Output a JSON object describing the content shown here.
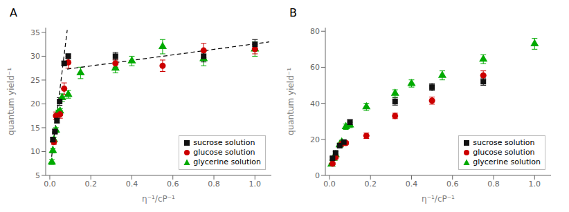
{
  "chart_data": [
    {
      "type": "scatter",
      "title": "A",
      "xlabel": "η⁻¹/cP⁻¹",
      "ylabel": "quantum yield⁻¹",
      "xlim": [
        -0.02,
        1.08
      ],
      "ylim": [
        5,
        36
      ],
      "xticks": [
        {
          "value": 0,
          "label": "0.0"
        },
        0.2,
        0.4,
        0.6,
        0.8,
        {
          "value": 1,
          "label": "1.0"
        }
      ],
      "yticks": [
        5,
        10,
        15,
        20,
        25,
        30,
        35
      ],
      "grid": false,
      "legend": "lower right",
      "series": [
        {
          "name": "sucrose solution",
          "color": "#111111",
          "marker": "square",
          "x": [
            0.015,
            0.025,
            0.035,
            0.048,
            0.07,
            0.09,
            0.32,
            0.75,
            1.0
          ],
          "y": [
            12.5,
            14.2,
            16.5,
            20.5,
            28.5,
            30.0,
            30.0,
            30.0,
            32.5
          ],
          "yerr": [
            0.5,
            0.5,
            0.5,
            0.8,
            0.5,
            0.5,
            0.8,
            1.2,
            1.0
          ]
        },
        {
          "name": "glucose solution",
          "color": "#cc0000",
          "marker": "circle",
          "x": [
            0.02,
            0.03,
            0.05,
            0.07,
            0.09,
            0.32,
            0.55,
            0.75,
            1.0
          ],
          "y": [
            12.0,
            17.5,
            17.8,
            23.2,
            28.7,
            28.5,
            28.0,
            31.2,
            31.5
          ],
          "yerr": [
            0.5,
            0.8,
            0.8,
            1.2,
            1.2,
            0.8,
            1.2,
            1.5,
            1.0
          ]
        },
        {
          "name": "glycerine solution",
          "color": "#00aa00",
          "marker": "triangle",
          "x": [
            0.01,
            0.015,
            0.02,
            0.03,
            0.04,
            0.05,
            0.06,
            0.09,
            0.15,
            0.32,
            0.4,
            0.55,
            0.75,
            1.0
          ],
          "y": [
            7.8,
            10.2,
            12.5,
            14.5,
            18.2,
            18.5,
            21.3,
            22.0,
            26.5,
            27.5,
            29.0,
            32.0,
            29.5,
            31.5
          ],
          "yerr": [
            0.5,
            0.5,
            0.5,
            0.5,
            0.5,
            0.5,
            0.8,
            0.8,
            1.2,
            1.0,
            1.0,
            1.5,
            1.5,
            1.5
          ]
        },
        {
          "type": "line",
          "line_style": "dashed",
          "color": "#000000",
          "x": [
            0.005,
            0.085
          ],
          "y": [
            7.5,
            35.5
          ]
        },
        {
          "type": "line",
          "line_style": "dashed",
          "color": "#000000",
          "x": [
            0.085,
            1.07
          ],
          "y": [
            27.3,
            33.0
          ]
        }
      ]
    },
    {
      "type": "scatter",
      "title": "B",
      "xlabel": "η⁻¹/cP⁻¹",
      "ylabel": "quantum yield⁻¹",
      "xlim": [
        -0.02,
        1.08
      ],
      "ylim": [
        0,
        82
      ],
      "xticks": [
        {
          "value": 0,
          "label": "0.0"
        },
        0.2,
        0.4,
        0.6,
        0.8,
        {
          "value": 1,
          "label": "1.0"
        }
      ],
      "yticks": [
        0,
        20,
        40,
        60,
        80
      ],
      "grid": false,
      "legend": "lower right",
      "series": [
        {
          "name": "sucrose solution",
          "color": "#111111",
          "marker": "square",
          "x": [
            0.015,
            0.03,
            0.05,
            0.07,
            0.1,
            0.32,
            0.5,
            0.75
          ],
          "y": [
            9.5,
            12.5,
            16.5,
            18.5,
            29.5,
            41.0,
            49.0,
            52.0
          ],
          "yerr": [
            0.8,
            0.8,
            1.0,
            1.0,
            1.5,
            2.0,
            2.0,
            2.0
          ]
        },
        {
          "name": "glucose solution",
          "color": "#cc0000",
          "marker": "circle",
          "x": [
            0.015,
            0.03,
            0.06,
            0.08,
            0.18,
            0.32,
            0.5,
            0.75
          ],
          "y": [
            6.5,
            10.0,
            17.5,
            18.0,
            22.0,
            33.0,
            41.5,
            55.5
          ],
          "yerr": [
            0.5,
            0.8,
            1.0,
            1.0,
            1.5,
            1.5,
            2.0,
            2.5
          ]
        },
        {
          "name": "glycerine solution",
          "color": "#00aa00",
          "marker": "triangle",
          "x": [
            0.01,
            0.02,
            0.03,
            0.05,
            0.06,
            0.08,
            0.1,
            0.18,
            0.32,
            0.4,
            0.55,
            0.75,
            1.0
          ],
          "y": [
            6.2,
            9.5,
            11.5,
            17.0,
            18.5,
            27.0,
            28.0,
            38.0,
            45.5,
            51.0,
            55.5,
            64.5,
            73.0
          ],
          "yerr": [
            0.5,
            0.5,
            0.8,
            1.0,
            1.0,
            1.5,
            1.5,
            2.0,
            2.0,
            2.0,
            2.5,
            2.5,
            3.0
          ]
        }
      ]
    }
  ]
}
